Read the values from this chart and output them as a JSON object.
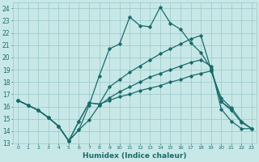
{
  "title": "",
  "xlabel": "Humidex (Indice chaleur)",
  "ylabel": "",
  "bg_color": "#c8e8e8",
  "grid_color": "#a0cccc",
  "line_color": "#1a6b6b",
  "xlim": [
    -0.5,
    23.5
  ],
  "ylim": [
    13,
    24.5
  ],
  "yticks": [
    13,
    14,
    15,
    16,
    17,
    18,
    19,
    20,
    21,
    22,
    23,
    24
  ],
  "xticks": [
    0,
    1,
    2,
    3,
    4,
    5,
    6,
    7,
    8,
    9,
    10,
    11,
    12,
    13,
    14,
    15,
    16,
    17,
    18,
    19,
    20,
    21,
    22,
    23
  ],
  "series": [
    {
      "x": [
        0,
        1,
        2,
        3,
        4,
        5,
        6,
        7,
        8,
        9,
        10,
        11,
        12,
        13,
        14,
        15,
        16,
        17,
        18,
        19,
        20,
        21,
        22,
        23
      ],
      "y": [
        16.5,
        16.1,
        15.7,
        15.1,
        14.4,
        13.2,
        14.1,
        14.9,
        16.1,
        16.7,
        17.2,
        17.6,
        18.0,
        18.4,
        18.7,
        19.0,
        19.3,
        19.6,
        19.8,
        19.3,
        15.8,
        14.8,
        14.2,
        14.2
      ]
    },
    {
      "x": [
        0,
        1,
        2,
        3,
        4,
        5,
        6,
        7,
        8,
        9,
        10,
        11,
        12,
        13,
        14,
        15,
        16,
        17,
        18,
        19,
        20,
        21,
        22,
        23
      ],
      "y": [
        16.5,
        16.1,
        15.7,
        15.1,
        14.4,
        13.2,
        14.8,
        16.3,
        16.2,
        17.6,
        18.2,
        18.8,
        19.3,
        19.8,
        20.3,
        20.7,
        21.1,
        21.5,
        21.8,
        19.0,
        16.4,
        15.7,
        14.7,
        14.2
      ]
    },
    {
      "x": [
        0,
        1,
        2,
        3,
        4,
        5,
        6,
        7,
        8,
        9,
        10,
        11,
        12,
        13,
        14,
        15,
        16,
        17,
        18,
        19,
        20,
        21,
        22,
        23
      ],
      "y": [
        16.5,
        16.1,
        15.7,
        15.1,
        14.4,
        13.2,
        14.1,
        16.1,
        18.5,
        20.7,
        21.1,
        23.3,
        22.6,
        22.5,
        24.1,
        22.8,
        22.3,
        21.2,
        20.4,
        19.1,
        16.4,
        15.8,
        null,
        null
      ]
    },
    {
      "x": [
        0,
        1,
        2,
        3,
        4,
        5,
        6,
        7,
        8,
        9,
        10,
        11,
        12,
        13,
        14,
        15,
        16,
        17,
        18,
        19,
        20,
        21,
        22,
        23
      ],
      "y": [
        16.5,
        16.1,
        15.7,
        15.1,
        14.4,
        13.2,
        14.8,
        16.3,
        16.2,
        16.5,
        16.8,
        17.0,
        17.3,
        17.5,
        17.7,
        18.0,
        18.2,
        18.5,
        18.7,
        18.9,
        16.7,
        15.9,
        14.8,
        14.2
      ]
    }
  ]
}
